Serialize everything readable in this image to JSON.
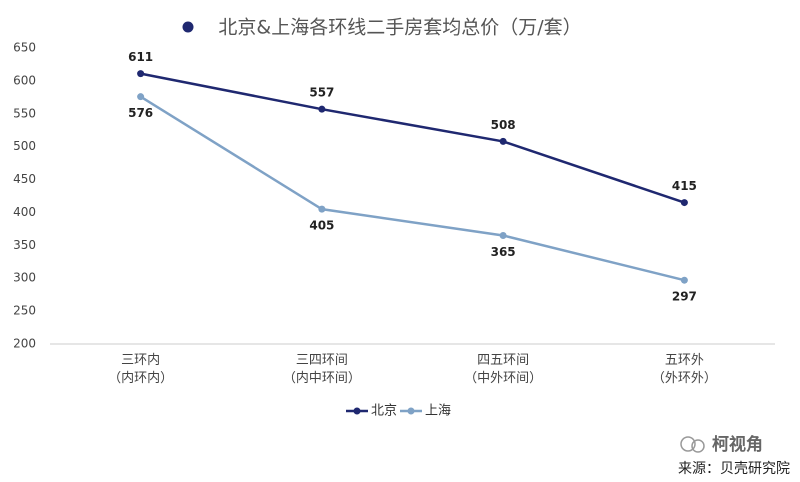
{
  "chart_data": {
    "type": "line",
    "title": "北京&上海各环线二手房套均总价（万/套）",
    "categories": [
      "三环内\n（内环内）",
      "三四环间\n（内中环间）",
      "四五环间\n（中外环间）",
      "五环外\n（外环外）"
    ],
    "series": [
      {
        "name": "北京",
        "color": "#1f2870",
        "values": [
          611,
          557,
          508,
          415
        ]
      },
      {
        "name": "上海",
        "color": "#7fa2c6",
        "values": [
          576,
          405,
          365,
          297
        ]
      }
    ],
    "ylim": [
      200,
      650
    ],
    "yticks": [
      200,
      250,
      300,
      350,
      400,
      450,
      500,
      550,
      600,
      650
    ],
    "grid": false,
    "legend": "bottom",
    "annotations": [
      "柯视角",
      "来源：贝壳研究院"
    ]
  }
}
